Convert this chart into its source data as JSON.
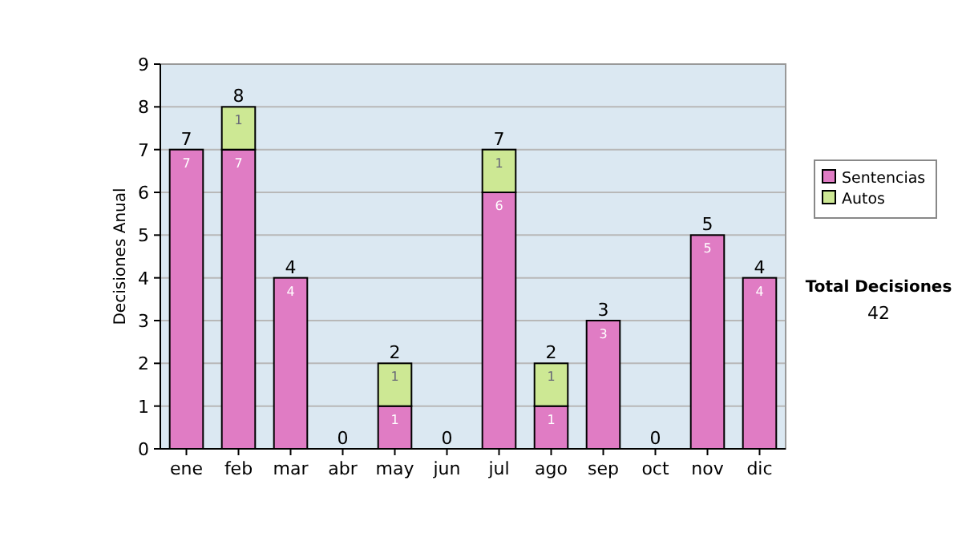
{
  "chart_data": {
    "type": "bar",
    "stacked": true,
    "ylabel": "Decisiones Anual",
    "categories": [
      "ene",
      "feb",
      "mar",
      "abr",
      "may",
      "jun",
      "jul",
      "ago",
      "sep",
      "oct",
      "nov",
      "dic"
    ],
    "series": [
      {
        "name": "Sentencias",
        "color": "#e07cc4",
        "values": [
          7,
          7,
          4,
          0,
          1,
          0,
          6,
          1,
          3,
          0,
          5,
          4
        ],
        "value_labels": [
          "7",
          "7",
          "4",
          null,
          "1",
          null,
          "6",
          "1",
          "3",
          null,
          "5",
          "4"
        ]
      },
      {
        "name": "Autos",
        "color": "#cde894",
        "values": [
          0,
          1,
          0,
          0,
          1,
          0,
          1,
          1,
          0,
          0,
          0,
          0
        ],
        "value_labels": [
          null,
          "1",
          null,
          null,
          "1",
          null,
          "1",
          "1",
          null,
          null,
          null,
          null
        ]
      }
    ],
    "totals": [
      "7",
      "8",
      "4",
      "0",
      "2",
      "0",
      "7",
      "2",
      "3",
      "0",
      "5",
      "4"
    ],
    "ylim": [
      0,
      9
    ],
    "yticks": [
      0,
      1,
      2,
      3,
      4,
      5,
      6,
      7,
      8,
      9
    ],
    "grid": "y",
    "legend": "right",
    "annotations": [
      "Total Decisiones",
      "42"
    ]
  }
}
